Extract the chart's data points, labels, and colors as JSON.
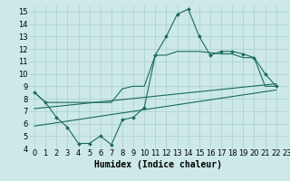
{
  "xlabel": "Humidex (Indice chaleur)",
  "ylabel": "",
  "bg_color": "#cce8e8",
  "grid_color": "#aacece",
  "line_color": "#1a6b5a",
  "xlim": [
    -0.5,
    23
  ],
  "ylim": [
    4,
    15.5
  ],
  "xticks": [
    0,
    1,
    2,
    3,
    4,
    5,
    6,
    7,
    8,
    9,
    10,
    11,
    12,
    13,
    14,
    15,
    16,
    17,
    18,
    19,
    20,
    21,
    22,
    23
  ],
  "yticks": [
    4,
    5,
    6,
    7,
    8,
    9,
    10,
    11,
    12,
    13,
    14,
    15
  ],
  "curve1_x": [
    0,
    1,
    2,
    3,
    4,
    5,
    6,
    7,
    8,
    9,
    10,
    11,
    12,
    13,
    14,
    15,
    16,
    17,
    18,
    19,
    20,
    21,
    22
  ],
  "curve1_y": [
    8.5,
    7.7,
    6.5,
    5.7,
    4.4,
    4.4,
    5.0,
    4.3,
    6.3,
    6.5,
    7.3,
    11.5,
    13.0,
    14.8,
    15.2,
    13.0,
    11.5,
    11.8,
    11.8,
    11.6,
    11.3,
    10.0,
    9.0
  ],
  "curve2_x": [
    0,
    1,
    2,
    3,
    4,
    5,
    6,
    7,
    8,
    9,
    10,
    11,
    12,
    13,
    14,
    15,
    16,
    17,
    18,
    19,
    20,
    21,
    22
  ],
  "curve2_y": [
    8.5,
    7.7,
    7.7,
    7.7,
    7.7,
    7.7,
    7.7,
    7.7,
    8.8,
    9.0,
    9.0,
    11.5,
    11.5,
    11.8,
    11.8,
    11.8,
    11.7,
    11.6,
    11.6,
    11.3,
    11.3,
    9.0,
    9.0
  ],
  "curve3_x": [
    0,
    22
  ],
  "curve3_y": [
    7.2,
    9.2
  ],
  "curve4_x": [
    0,
    22
  ],
  "curve4_y": [
    5.8,
    8.7
  ],
  "font_size_tick": 6,
  "font_size_label": 7
}
